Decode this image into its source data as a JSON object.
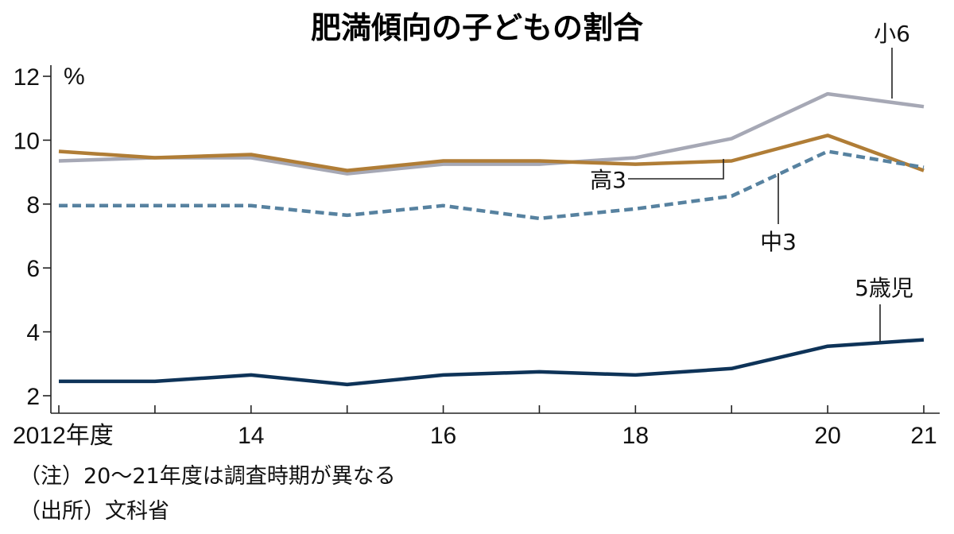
{
  "chart_data": {
    "type": "line",
    "title": "肥満傾向の子どもの割合",
    "ylabel": "%",
    "ylim": [
      2,
      12
    ],
    "yticks": [
      "2",
      "4",
      "6",
      "8",
      "10",
      "12"
    ],
    "x": [
      2012,
      2013,
      2014,
      2015,
      2016,
      2017,
      2018,
      2019,
      2020,
      2021
    ],
    "xtick_labels": [
      "2012年度",
      "14",
      "16",
      "18",
      "20",
      "21"
    ],
    "grid": false,
    "series": [
      {
        "name": "小6",
        "color": "#a6a8b5",
        "style": "solid",
        "values": [
          9.35,
          9.45,
          9.45,
          8.95,
          9.25,
          9.25,
          9.45,
          10.05,
          11.45,
          11.05
        ]
      },
      {
        "name": "高3",
        "color": "#b07d36",
        "style": "solid",
        "values": [
          9.65,
          9.45,
          9.55,
          9.05,
          9.35,
          9.35,
          9.25,
          9.35,
          10.15,
          9.05
        ]
      },
      {
        "name": "中3",
        "color": "#5782a0",
        "style": "dashed",
        "values": [
          7.95,
          7.95,
          7.95,
          7.65,
          7.95,
          7.55,
          7.85,
          8.25,
          9.65,
          9.15
        ]
      },
      {
        "name": "5歳児",
        "color": "#0e3358",
        "style": "solid",
        "values": [
          2.45,
          2.45,
          2.65,
          2.35,
          2.65,
          2.75,
          2.65,
          2.85,
          3.55,
          3.75
        ]
      }
    ],
    "notes": [
      "（注）20～21年度は調査時期が異なる",
      "（出所）文科省"
    ]
  }
}
